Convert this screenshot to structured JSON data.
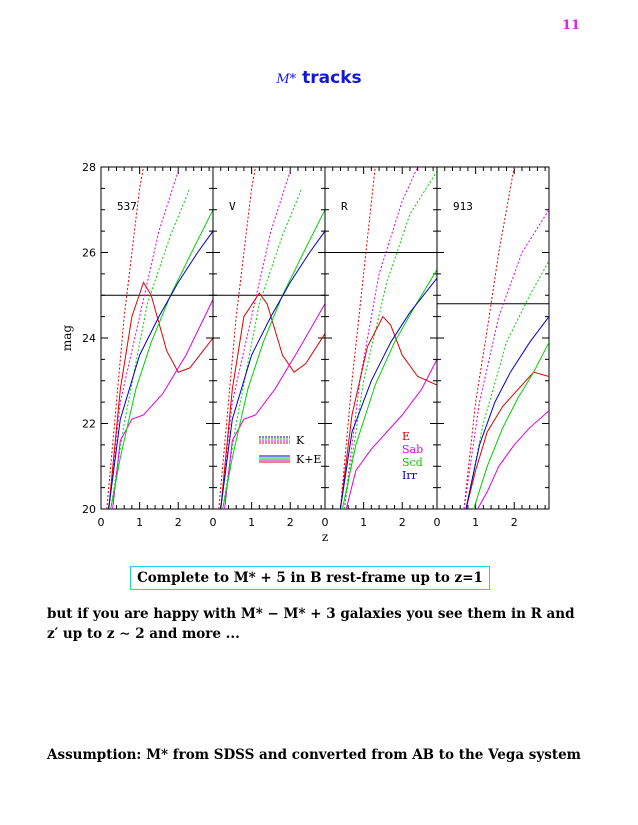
{
  "page_number": "11",
  "title": {
    "symbol": "M*",
    "word": "tracks"
  },
  "colors": {
    "E": "#e00000",
    "Sab": "#e000e0",
    "Scd": "#00d000",
    "Irr": "#0000c8",
    "cutoff": "#000000"
  },
  "boxed_text": "Complete to M* + 5 in B rest-frame up to z=1",
  "paragraph": "but if you are happy with M* − M* + 3 galaxies you see them in R and z′ up to z ∼ 2 and more ...",
  "assumption": "Assumption: M* from SDSS and converted from AB to the Vega system",
  "chart_data": {
    "type": "line",
    "ylabel": "mag",
    "xlabel": "z",
    "ylim": [
      20,
      28
    ],
    "y_ticks": [
      "20",
      "22",
      "24",
      "26",
      "28"
    ],
    "legend_styles": [
      {
        "label": "K",
        "style": "dotted"
      },
      {
        "label": "K+E",
        "style": "solid"
      }
    ],
    "legend_types": [
      "E",
      "Sab",
      "Scd",
      "Irr"
    ],
    "panels": [
      {
        "label": "537",
        "xlim": [
          0,
          2.9
        ],
        "x_ticks": [
          "0",
          "1",
          "2"
        ],
        "cutoff": 25,
        "series": [
          {
            "name": "E",
            "style": "dotted",
            "points": [
              [
                0.15,
                20.0
              ],
              [
                0.3,
                21.5
              ],
              [
                0.6,
                24.5
              ],
              [
                1.0,
                27.5
              ],
              [
                1.1,
                28.0
              ]
            ]
          },
          {
            "name": "Sab",
            "style": "dotted",
            "points": [
              [
                0.2,
                20.0
              ],
              [
                0.5,
                22.5
              ],
              [
                1.0,
                24.5
              ],
              [
                1.5,
                26.5
              ],
              [
                2.0,
                27.9
              ]
            ]
          },
          {
            "name": "Scd",
            "style": "dotted",
            "points": [
              [
                0.25,
                20.0
              ],
              [
                0.6,
                22.0
              ],
              [
                1.2,
                24.8
              ],
              [
                1.8,
                26.4
              ],
              [
                2.3,
                27.5
              ]
            ]
          },
          {
            "name": "E",
            "style": "solid",
            "points": [
              [
                0.2,
                20.0
              ],
              [
                0.5,
                22.8
              ],
              [
                0.8,
                24.5
              ],
              [
                1.1,
                25.3
              ],
              [
                1.3,
                25.0
              ],
              [
                1.7,
                23.7
              ],
              [
                2.0,
                23.2
              ],
              [
                2.3,
                23.3
              ],
              [
                2.9,
                24.0
              ]
            ]
          },
          {
            "name": "Sab",
            "style": "solid",
            "points": [
              [
                0.3,
                20.0
              ],
              [
                0.5,
                21.6
              ],
              [
                0.8,
                22.1
              ],
              [
                1.1,
                22.2
              ],
              [
                1.6,
                22.7
              ],
              [
                2.2,
                23.6
              ],
              [
                2.9,
                24.9
              ]
            ]
          },
          {
            "name": "Scd",
            "style": "solid",
            "points": [
              [
                0.25,
                20.0
              ],
              [
                0.5,
                21.2
              ],
              [
                0.9,
                22.8
              ],
              [
                1.3,
                23.9
              ],
              [
                1.8,
                25.0
              ],
              [
                2.4,
                26.1
              ],
              [
                2.9,
                27.0
              ]
            ]
          },
          {
            "name": "Irr",
            "style": "solid",
            "points": [
              [
                0.2,
                20.0
              ],
              [
                0.5,
                22.1
              ],
              [
                1.0,
                23.6
              ],
              [
                1.5,
                24.5
              ],
              [
                2.0,
                25.3
              ],
              [
                2.5,
                26.0
              ],
              [
                2.9,
                26.5
              ]
            ]
          }
        ]
      },
      {
        "label": "V",
        "xlim": [
          0,
          2.9
        ],
        "x_ticks": [
          "0",
          "1",
          "2"
        ],
        "cutoff": 25,
        "series": [
          {
            "name": "E",
            "style": "dotted",
            "points": [
              [
                0.15,
                20.0
              ],
              [
                0.3,
                21.5
              ],
              [
                0.6,
                24.5
              ],
              [
                1.0,
                27.5
              ],
              [
                1.1,
                28.0
              ]
            ]
          },
          {
            "name": "Sab",
            "style": "dotted",
            "points": [
              [
                0.2,
                20.0
              ],
              [
                0.5,
                22.5
              ],
              [
                1.0,
                24.5
              ],
              [
                1.5,
                26.5
              ],
              [
                2.0,
                27.9
              ]
            ]
          },
          {
            "name": "Scd",
            "style": "dotted",
            "points": [
              [
                0.25,
                20.0
              ],
              [
                0.6,
                22.0
              ],
              [
                1.2,
                24.8
              ],
              [
                1.8,
                26.4
              ],
              [
                2.3,
                27.5
              ]
            ]
          },
          {
            "name": "E",
            "style": "solid",
            "points": [
              [
                0.2,
                20.0
              ],
              [
                0.5,
                22.8
              ],
              [
                0.8,
                24.5
              ],
              [
                1.2,
                25.05
              ],
              [
                1.4,
                24.8
              ],
              [
                1.8,
                23.6
              ],
              [
                2.1,
                23.2
              ],
              [
                2.4,
                23.4
              ],
              [
                2.9,
                24.1
              ]
            ]
          },
          {
            "name": "Sab",
            "style": "solid",
            "points": [
              [
                0.3,
                20.0
              ],
              [
                0.5,
                21.6
              ],
              [
                0.8,
                22.1
              ],
              [
                1.1,
                22.2
              ],
              [
                1.6,
                22.8
              ],
              [
                2.2,
                23.7
              ],
              [
                2.9,
                24.8
              ]
            ]
          },
          {
            "name": "Scd",
            "style": "solid",
            "points": [
              [
                0.25,
                20.0
              ],
              [
                0.5,
                21.2
              ],
              [
                0.9,
                22.8
              ],
              [
                1.3,
                23.9
              ],
              [
                1.8,
                25.0
              ],
              [
                2.4,
                26.1
              ],
              [
                2.9,
                27.0
              ]
            ]
          },
          {
            "name": "Irr",
            "style": "solid",
            "points": [
              [
                0.2,
                20.0
              ],
              [
                0.5,
                22.1
              ],
              [
                1.0,
                23.6
              ],
              [
                1.5,
                24.5
              ],
              [
                2.0,
                25.3
              ],
              [
                2.5,
                26.0
              ],
              [
                2.9,
                26.5
              ]
            ]
          }
        ]
      },
      {
        "label": "R",
        "xlim": [
          0,
          2.9
        ],
        "x_ticks": [
          "0",
          "1",
          "2"
        ],
        "cutoff": 26,
        "series": [
          {
            "name": "E",
            "style": "dotted",
            "points": [
              [
                0.4,
                20.0
              ],
              [
                0.7,
                23.0
              ],
              [
                1.0,
                25.5
              ],
              [
                1.3,
                28.0
              ]
            ]
          },
          {
            "name": "Sab",
            "style": "dotted",
            "points": [
              [
                0.5,
                20.0
              ],
              [
                0.9,
                23.0
              ],
              [
                1.4,
                25.5
              ],
              [
                2.0,
                27.2
              ],
              [
                2.4,
                28.0
              ]
            ]
          },
          {
            "name": "Scd",
            "style": "dotted",
            "points": [
              [
                0.5,
                20.0
              ],
              [
                1.0,
                23.0
              ],
              [
                1.6,
                25.3
              ],
              [
                2.2,
                26.9
              ],
              [
                2.9,
                27.9
              ]
            ]
          },
          {
            "name": "E",
            "style": "solid",
            "points": [
              [
                0.4,
                20.0
              ],
              [
                0.7,
                22.2
              ],
              [
                1.1,
                23.8
              ],
              [
                1.5,
                24.5
              ],
              [
                1.7,
                24.3
              ],
              [
                2.0,
                23.6
              ],
              [
                2.4,
                23.1
              ],
              [
                2.9,
                22.9
              ]
            ]
          },
          {
            "name": "Sab",
            "style": "solid",
            "points": [
              [
                0.55,
                20.0
              ],
              [
                0.8,
                20.9
              ],
              [
                1.2,
                21.4
              ],
              [
                1.6,
                21.8
              ],
              [
                2.0,
                22.2
              ],
              [
                2.5,
                22.8
              ],
              [
                2.9,
                23.5
              ]
            ]
          },
          {
            "name": "Scd",
            "style": "solid",
            "points": [
              [
                0.45,
                20.0
              ],
              [
                0.8,
                21.5
              ],
              [
                1.3,
                22.9
              ],
              [
                1.8,
                23.9
              ],
              [
                2.3,
                24.7
              ],
              [
                2.9,
                25.6
              ]
            ]
          },
          {
            "name": "Irr",
            "style": "solid",
            "points": [
              [
                0.4,
                20.0
              ],
              [
                0.7,
                21.8
              ],
              [
                1.2,
                23.0
              ],
              [
                1.7,
                23.9
              ],
              [
                2.2,
                24.6
              ],
              [
                2.9,
                25.4
              ]
            ]
          }
        ]
      },
      {
        "label": "913",
        "xlim": [
          0,
          2.9
        ],
        "x_ticks": [
          "0",
          "1",
          "2"
        ],
        "cutoff": 24.8,
        "series": [
          {
            "name": "E",
            "style": "dotted",
            "points": [
              [
                0.7,
                20.0
              ],
              [
                1.0,
                22.5
              ],
              [
                1.3,
                24.2
              ],
              [
                1.6,
                26.0
              ],
              [
                2.0,
                28.0
              ]
            ]
          },
          {
            "name": "Sab",
            "style": "dotted",
            "points": [
              [
                0.7,
                20.0
              ],
              [
                1.1,
                22.5
              ],
              [
                1.6,
                24.5
              ],
              [
                2.2,
                26.0
              ],
              [
                2.9,
                27.0
              ]
            ]
          },
          {
            "name": "Scd",
            "style": "dotted",
            "points": [
              [
                0.75,
                20.0
              ],
              [
                1.2,
                22.0
              ],
              [
                1.8,
                23.9
              ],
              [
                2.4,
                25.0
              ],
              [
                2.9,
                25.8
              ]
            ]
          },
          {
            "name": "E",
            "style": "solid",
            "points": [
              [
                0.75,
                20.0
              ],
              [
                1.0,
                20.9
              ],
              [
                1.3,
                21.8
              ],
              [
                1.7,
                22.4
              ],
              [
                2.1,
                22.8
              ],
              [
                2.5,
                23.2
              ],
              [
                2.9,
                23.1
              ]
            ]
          },
          {
            "name": "Sab",
            "style": "solid",
            "points": [
              [
                1.05,
                20.0
              ],
              [
                1.3,
                20.4
              ],
              [
                1.6,
                21.0
              ],
              [
                2.0,
                21.5
              ],
              [
                2.4,
                21.9
              ],
              [
                2.9,
                22.3
              ]
            ]
          },
          {
            "name": "Scd",
            "style": "solid",
            "points": [
              [
                0.95,
                20.0
              ],
              [
                1.3,
                21.0
              ],
              [
                1.7,
                21.9
              ],
              [
                2.1,
                22.6
              ],
              [
                2.5,
                23.2
              ],
              [
                2.9,
                23.9
              ]
            ]
          },
          {
            "name": "Irr",
            "style": "solid",
            "points": [
              [
                0.75,
                20.0
              ],
              [
                1.1,
                21.5
              ],
              [
                1.5,
                22.5
              ],
              [
                1.9,
                23.2
              ],
              [
                2.4,
                23.9
              ],
              [
                2.9,
                24.5
              ]
            ]
          }
        ]
      }
    ]
  }
}
